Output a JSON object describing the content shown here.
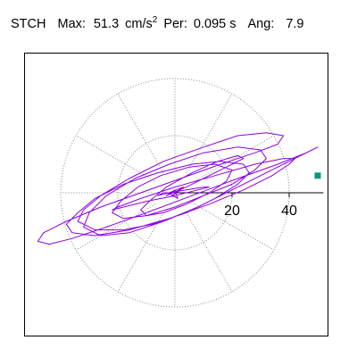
{
  "header": {
    "station": "STCH",
    "max_label": "Max:",
    "max_value": "51.3",
    "max_unit": "cm/s",
    "max_unit_exp": "2",
    "per_label": "Per:",
    "per_value": "0.095 s",
    "ang_label": "Ang:",
    "ang_value": "7.9"
  },
  "chart_data": {
    "type": "line",
    "title": "",
    "xlabel": "",
    "ylabel": "",
    "xlim": [
      -50,
      50
    ],
    "ylim": [
      -50,
      50
    ],
    "radial_ticks": [
      20,
      40
    ],
    "rings": [
      20,
      40
    ],
    "spokes_deg": [
      0,
      30,
      60,
      90,
      120,
      150,
      180,
      210,
      240,
      270,
      300,
      330
    ],
    "grid": true,
    "series": [
      {
        "name": "",
        "color": "#8a00e6",
        "x": [
          0,
          2,
          -1,
          3,
          -2,
          1,
          0,
          -3,
          4,
          8,
          14,
          20,
          24,
          22,
          15,
          6,
          -3,
          -9,
          -12,
          -10,
          -4,
          4,
          12,
          18,
          20,
          14,
          5,
          -5,
          -13,
          -19,
          -22,
          -18,
          -10,
          0,
          10,
          20,
          28,
          32,
          30,
          22,
          10,
          -2,
          -14,
          -24,
          -30,
          -32,
          -26,
          -16,
          -4,
          8,
          20,
          32,
          42,
          48,
          50,
          46,
          36,
          22,
          6,
          -10,
          -24,
          -36,
          -44,
          -48,
          -46,
          -38,
          -26,
          -12,
          2,
          16,
          28,
          36,
          38,
          32,
          22,
          10,
          -4,
          -16,
          -26,
          -32,
          -34,
          -28,
          -18,
          -8,
          4,
          14,
          22,
          26,
          24,
          16,
          6,
          -6,
          -18,
          -28,
          -34,
          -38,
          -36,
          -28,
          -16,
          -2,
          12,
          24,
          34,
          40,
          42,
          38,
          28,
          14,
          0,
          -12,
          -20,
          -22,
          -18,
          -10,
          0,
          8,
          12,
          10,
          4,
          -2,
          -6,
          -4,
          0
        ],
        "y": [
          0,
          1,
          -1,
          2,
          0,
          -2,
          1,
          -1,
          2,
          4,
          7,
          10,
          12,
          13,
          11,
          7,
          2,
          -3,
          -6,
          -8,
          -7,
          -4,
          0,
          4,
          8,
          10,
          9,
          6,
          2,
          -3,
          -7,
          -9,
          -8,
          -5,
          -1,
          3,
          8,
          12,
          15,
          16,
          14,
          10,
          5,
          -1,
          -7,
          -12,
          -15,
          -14,
          -10,
          -5,
          1,
          7,
          12,
          15,
          16,
          14,
          10,
          5,
          -1,
          -7,
          -12,
          -16,
          -18,
          -17,
          -14,
          -10,
          -5,
          0,
          5,
          10,
          14,
          17,
          20,
          21,
          20,
          16,
          11,
          5,
          -1,
          -6,
          -10,
          -13,
          -13,
          -11,
          -7,
          -2,
          3,
          7,
          10,
          11,
          10,
          7,
          3,
          -2,
          -7,
          -11,
          -14,
          -15,
          -13,
          -9,
          -4,
          1,
          6,
          10,
          12,
          12,
          10,
          6,
          2,
          -2,
          -5,
          -6,
          -5,
          -3,
          -1,
          1,
          2,
          2,
          1,
          0,
          -1,
          0,
          0
        ]
      }
    ],
    "endpoint": {
      "x": 50,
      "y": 6,
      "color": "#0a9a7a"
    }
  }
}
